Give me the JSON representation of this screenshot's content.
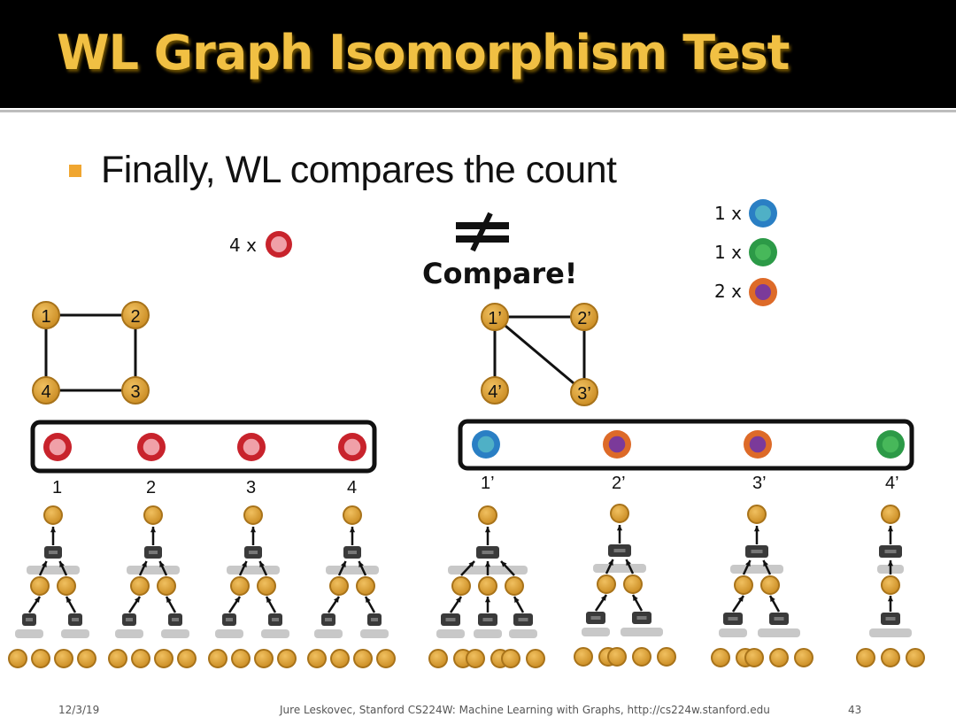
{
  "slide": {
    "title": "WL Graph Isomorphism Test",
    "bullet": "Finally, WL compares the count",
    "compare_label": "Compare!",
    "footer": {
      "date": "12/3/19",
      "credit": "Jure Leskovec, Stanford CS224W: Machine Learning with Graphs, http://cs224w.stanford.edu",
      "page": "43"
    }
  },
  "colors": {
    "node_gold": "#d89a2a",
    "node_gold_edge": "#a8731a",
    "red_outer": "#c8232c",
    "red_inner": "#f0a0a8",
    "blue_outer": "#2a7fc4",
    "blue_inner": "#4fb0c6",
    "green_outer": "#2c9a47",
    "green_inner": "#47b85a",
    "orange_outer": "#dd6a28",
    "purple_inner": "#7b3a9a"
  },
  "left_graph": {
    "count_label": "4 x",
    "color_counts": [
      {
        "label": "4 x",
        "color": "red"
      }
    ],
    "nodes": [
      {
        "id": "1",
        "label": "1"
      },
      {
        "id": "2",
        "label": "2"
      },
      {
        "id": "3",
        "label": "3"
      },
      {
        "id": "4",
        "label": "4"
      }
    ],
    "edges": [
      [
        "1",
        "2"
      ],
      [
        "2",
        "3"
      ],
      [
        "3",
        "4"
      ],
      [
        "4",
        "1"
      ]
    ],
    "node_colors": [
      "red",
      "red",
      "red",
      "red"
    ],
    "color_labels": [
      "1",
      "2",
      "3",
      "4"
    ]
  },
  "right_graph": {
    "color_counts": [
      {
        "label": "1 x",
        "color": "blue"
      },
      {
        "label": "1 x",
        "color": "green"
      },
      {
        "label": "2 x",
        "color": "orange"
      }
    ],
    "nodes": [
      {
        "id": "1'",
        "label": "1’"
      },
      {
        "id": "2'",
        "label": "2’"
      },
      {
        "id": "3'",
        "label": "3’"
      },
      {
        "id": "4'",
        "label": "4’"
      }
    ],
    "edges": [
      [
        "1'",
        "2'"
      ],
      [
        "1'",
        "3'"
      ],
      [
        "2'",
        "3'"
      ],
      [
        "1'",
        "4'"
      ]
    ],
    "node_colors": [
      "blue",
      "orange",
      "orange",
      "green"
    ],
    "color_labels": [
      "1’",
      "2’",
      "3’",
      "4’"
    ]
  }
}
